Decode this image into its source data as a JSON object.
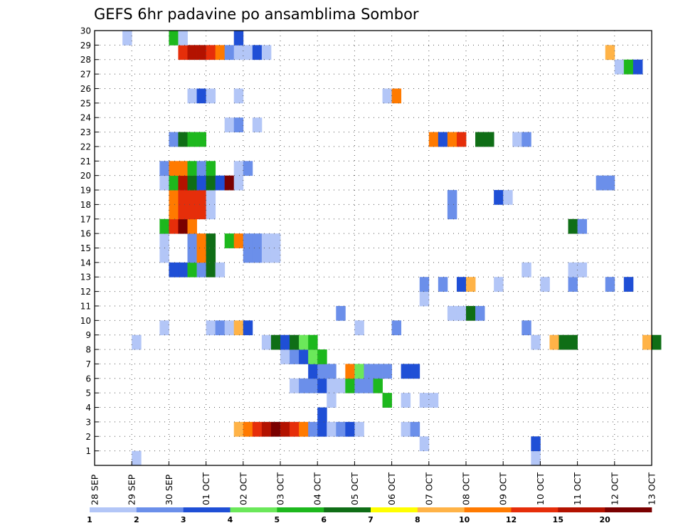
{
  "chart_data": {
    "type": "heatmap",
    "title": "GEFS 6hr padavine po ansamblima Sombor",
    "xlabel": "",
    "ylabel": "",
    "x_tick_labels": [
      "28 SEP",
      "29 SEP",
      "30 SEP",
      "01 OCT",
      "02 OCT",
      "03 OCT",
      "04 OCT",
      "05 OCT",
      "06 OCT",
      "07 OCT",
      "08 OCT",
      "09 OCT",
      "10 OCT",
      "11 OCT",
      "12 OCT",
      "13 OCT"
    ],
    "x_range_days": [
      0,
      15
    ],
    "time_step_hours": 6,
    "y_tick_labels": [
      "1",
      "2",
      "3",
      "4",
      "5",
      "6",
      "7",
      "8",
      "9",
      "10",
      "11",
      "12",
      "13",
      "14",
      "15",
      "16",
      "17",
      "18",
      "19",
      "20",
      "21",
      "22",
      "23",
      "24",
      "25",
      "26",
      "27",
      "28",
      "29",
      "30"
    ],
    "y_range": [
      0,
      30
    ],
    "grid": true,
    "legend": {
      "placement": "bottom",
      "levels": [
        "1",
        "2",
        "3",
        "4",
        "5",
        "6",
        "7",
        "8",
        "10",
        "12",
        "15",
        "20"
      ],
      "colors": [
        "#b3c6f7",
        "#6b8fea",
        "#1f4fd6",
        "#6be85a",
        "#1db81d",
        "#0f6e16",
        "#ffff00",
        "#ffb347",
        "#ff7a00",
        "#e62e0a",
        "#b31200",
        "#7a0000"
      ]
    },
    "cells": [
      {
        "m": 0,
        "t": 4,
        "c": 0
      },
      {
        "m": 0,
        "t": 47,
        "c": 0
      },
      {
        "m": 1,
        "t": 35,
        "c": 0
      },
      {
        "m": 1,
        "t": 47,
        "c": 2
      },
      {
        "m": 2,
        "t": 15,
        "c": 7
      },
      {
        "m": 2,
        "t": 16,
        "c": 8
      },
      {
        "m": 2,
        "t": 17,
        "c": 9
      },
      {
        "m": 2,
        "t": 18,
        "c": 10
      },
      {
        "m": 2,
        "t": 19,
        "c": 11
      },
      {
        "m": 2,
        "t": 20,
        "c": 10
      },
      {
        "m": 2,
        "t": 21,
        "c": 9
      },
      {
        "m": 2,
        "t": 22,
        "c": 8
      },
      {
        "m": 2,
        "t": 23,
        "c": 1
      },
      {
        "m": 2,
        "t": 24,
        "c": 2
      },
      {
        "m": 2,
        "t": 25,
        "c": 0
      },
      {
        "m": 2,
        "t": 26,
        "c": 1
      },
      {
        "m": 2,
        "t": 27,
        "c": 2
      },
      {
        "m": 2,
        "t": 28,
        "c": 0
      },
      {
        "m": 2,
        "t": 33,
        "c": 0
      },
      {
        "m": 2,
        "t": 34,
        "c": 1
      },
      {
        "m": 3,
        "t": 24,
        "c": 2
      },
      {
        "m": 4,
        "t": 25,
        "c": 0
      },
      {
        "m": 4,
        "t": 31,
        "c": 4
      },
      {
        "m": 4,
        "t": 33,
        "c": 0
      },
      {
        "m": 4,
        "t": 35,
        "c": 0
      },
      {
        "m": 4,
        "t": 36,
        "c": 0
      },
      {
        "m": 5,
        "t": 21,
        "c": 0
      },
      {
        "m": 5,
        "t": 22,
        "c": 1
      },
      {
        "m": 5,
        "t": 23,
        "c": 1
      },
      {
        "m": 5,
        "t": 24,
        "c": 2
      },
      {
        "m": 5,
        "t": 25,
        "c": 0
      },
      {
        "m": 5,
        "t": 26,
        "c": 0
      },
      {
        "m": 5,
        "t": 27,
        "c": 4
      },
      {
        "m": 5,
        "t": 28,
        "c": 1
      },
      {
        "m": 5,
        "t": 29,
        "c": 1
      },
      {
        "m": 5,
        "t": 30,
        "c": 4
      },
      {
        "m": 6,
        "t": 23,
        "c": 2
      },
      {
        "m": 6,
        "t": 24,
        "c": 1
      },
      {
        "m": 6,
        "t": 25,
        "c": 1
      },
      {
        "m": 6,
        "t": 27,
        "c": 8
      },
      {
        "m": 6,
        "t": 28,
        "c": 3
      },
      {
        "m": 6,
        "t": 29,
        "c": 1
      },
      {
        "m": 6,
        "t": 30,
        "c": 1
      },
      {
        "m": 6,
        "t": 31,
        "c": 1
      },
      {
        "m": 6,
        "t": 33,
        "c": 2
      },
      {
        "m": 6,
        "t": 34,
        "c": 2
      },
      {
        "m": 7,
        "t": 20,
        "c": 0
      },
      {
        "m": 7,
        "t": 21,
        "c": 1
      },
      {
        "m": 7,
        "t": 22,
        "c": 2
      },
      {
        "m": 7,
        "t": 23,
        "c": 3
      },
      {
        "m": 7,
        "t": 24,
        "c": 4
      },
      {
        "m": 8,
        "t": 4,
        "c": 0
      },
      {
        "m": 8,
        "t": 18,
        "c": 0
      },
      {
        "m": 8,
        "t": 19,
        "c": 5
      },
      {
        "m": 8,
        "t": 20,
        "c": 2
      },
      {
        "m": 8,
        "t": 21,
        "c": 5
      },
      {
        "m": 8,
        "t": 22,
        "c": 3
      },
      {
        "m": 8,
        "t": 23,
        "c": 4
      },
      {
        "m": 8,
        "t": 47,
        "c": 0
      },
      {
        "m": 8,
        "t": 49,
        "c": 7
      },
      {
        "m": 8,
        "t": 50,
        "c": 5
      },
      {
        "m": 8,
        "t": 51,
        "c": 5
      },
      {
        "m": 8,
        "t": 59,
        "c": 7
      },
      {
        "m": 8,
        "t": 60,
        "c": 5
      },
      {
        "m": 9,
        "t": 7,
        "c": 0
      },
      {
        "m": 9,
        "t": 12,
        "c": 0
      },
      {
        "m": 9,
        "t": 13,
        "c": 1
      },
      {
        "m": 9,
        "t": 14,
        "c": 0
      },
      {
        "m": 9,
        "t": 15,
        "c": 7
      },
      {
        "m": 9,
        "t": 16,
        "c": 2
      },
      {
        "m": 9,
        "t": 28,
        "c": 0
      },
      {
        "m": 9,
        "t": 32,
        "c": 1
      },
      {
        "m": 9,
        "t": 46,
        "c": 1
      },
      {
        "m": 10,
        "t": 26,
        "c": 1
      },
      {
        "m": 10,
        "t": 38,
        "c": 0
      },
      {
        "m": 10,
        "t": 39,
        "c": 0
      },
      {
        "m": 10,
        "t": 40,
        "c": 5
      },
      {
        "m": 10,
        "t": 41,
        "c": 1
      },
      {
        "m": 11,
        "t": 35,
        "c": 0
      },
      {
        "m": 12,
        "t": 35,
        "c": 1
      },
      {
        "m": 12,
        "t": 37,
        "c": 1
      },
      {
        "m": 12,
        "t": 39,
        "c": 2
      },
      {
        "m": 12,
        "t": 40,
        "c": 7
      },
      {
        "m": 12,
        "t": 43,
        "c": 0
      },
      {
        "m": 12,
        "t": 48,
        "c": 0
      },
      {
        "m": 12,
        "t": 51,
        "c": 1
      },
      {
        "m": 12,
        "t": 55,
        "c": 1
      },
      {
        "m": 12,
        "t": 57,
        "c": 2
      },
      {
        "m": 13,
        "t": 8,
        "c": 2
      },
      {
        "m": 13,
        "t": 9,
        "c": 2
      },
      {
        "m": 13,
        "t": 10,
        "c": 4
      },
      {
        "m": 13,
        "t": 11,
        "c": 1
      },
      {
        "m": 13,
        "t": 12,
        "c": 5
      },
      {
        "m": 13,
        "t": 13,
        "c": 0
      },
      {
        "m": 13,
        "t": 46,
        "c": 0
      },
      {
        "m": 13,
        "t": 51,
        "c": 0
      },
      {
        "m": 13,
        "t": 52,
        "c": 0
      },
      {
        "m": 14,
        "t": 7,
        "c": 0
      },
      {
        "m": 14,
        "t": 10,
        "c": 1
      },
      {
        "m": 14,
        "t": 11,
        "c": 8
      },
      {
        "m": 14,
        "t": 12,
        "c": 5
      },
      {
        "m": 14,
        "t": 16,
        "c": 1
      },
      {
        "m": 14,
        "t": 17,
        "c": 1
      },
      {
        "m": 14,
        "t": 18,
        "c": 0
      },
      {
        "m": 14,
        "t": 19,
        "c": 0
      },
      {
        "m": 15,
        "t": 7,
        "c": 0
      },
      {
        "m": 15,
        "t": 10,
        "c": 1
      },
      {
        "m": 15,
        "t": 11,
        "c": 8
      },
      {
        "m": 15,
        "t": 12,
        "c": 5
      },
      {
        "m": 15,
        "t": 14,
        "c": 4
      },
      {
        "m": 15,
        "t": 15,
        "c": 8
      },
      {
        "m": 15,
        "t": 16,
        "c": 1
      },
      {
        "m": 15,
        "t": 17,
        "c": 1
      },
      {
        "m": 15,
        "t": 18,
        "c": 0
      },
      {
        "m": 15,
        "t": 19,
        "c": 0
      },
      {
        "m": 16,
        "t": 7,
        "c": 4
      },
      {
        "m": 16,
        "t": 8,
        "c": 9
      },
      {
        "m": 16,
        "t": 9,
        "c": 11
      },
      {
        "m": 16,
        "t": 10,
        "c": 8
      },
      {
        "m": 16,
        "t": 51,
        "c": 5
      },
      {
        "m": 16,
        "t": 52,
        "c": 1
      },
      {
        "m": 17,
        "t": 8,
        "c": 8
      },
      {
        "m": 17,
        "t": 9,
        "c": 9
      },
      {
        "m": 17,
        "t": 10,
        "c": 9
      },
      {
        "m": 17,
        "t": 11,
        "c": 9
      },
      {
        "m": 17,
        "t": 12,
        "c": 0
      },
      {
        "m": 17,
        "t": 38,
        "c": 1
      },
      {
        "m": 18,
        "t": 8,
        "c": 8
      },
      {
        "m": 18,
        "t": 9,
        "c": 9
      },
      {
        "m": 18,
        "t": 10,
        "c": 9
      },
      {
        "m": 18,
        "t": 11,
        "c": 9
      },
      {
        "m": 18,
        "t": 12,
        "c": 0
      },
      {
        "m": 18,
        "t": 38,
        "c": 1
      },
      {
        "m": 18,
        "t": 43,
        "c": 2
      },
      {
        "m": 18,
        "t": 44,
        "c": 0
      },
      {
        "m": 19,
        "t": 7,
        "c": 0
      },
      {
        "m": 19,
        "t": 8,
        "c": 4
      },
      {
        "m": 19,
        "t": 9,
        "c": 10
      },
      {
        "m": 19,
        "t": 10,
        "c": 5
      },
      {
        "m": 19,
        "t": 11,
        "c": 2
      },
      {
        "m": 19,
        "t": 12,
        "c": 5
      },
      {
        "m": 19,
        "t": 13,
        "c": 2
      },
      {
        "m": 19,
        "t": 14,
        "c": 11
      },
      {
        "m": 19,
        "t": 15,
        "c": 0
      },
      {
        "m": 19,
        "t": 54,
        "c": 1
      },
      {
        "m": 19,
        "t": 55,
        "c": 1
      },
      {
        "m": 20,
        "t": 7,
        "c": 1
      },
      {
        "m": 20,
        "t": 8,
        "c": 8
      },
      {
        "m": 20,
        "t": 9,
        "c": 8
      },
      {
        "m": 20,
        "t": 10,
        "c": 4
      },
      {
        "m": 20,
        "t": 11,
        "c": 1
      },
      {
        "m": 20,
        "t": 12,
        "c": 4
      },
      {
        "m": 20,
        "t": 15,
        "c": 0
      },
      {
        "m": 20,
        "t": 16,
        "c": 1
      },
      {
        "m": 22,
        "t": 8,
        "c": 1
      },
      {
        "m": 22,
        "t": 9,
        "c": 5
      },
      {
        "m": 22,
        "t": 10,
        "c": 4
      },
      {
        "m": 22,
        "t": 11,
        "c": 4
      },
      {
        "m": 22,
        "t": 36,
        "c": 8
      },
      {
        "m": 22,
        "t": 37,
        "c": 2
      },
      {
        "m": 22,
        "t": 38,
        "c": 8
      },
      {
        "m": 22,
        "t": 39,
        "c": 9
      },
      {
        "m": 22,
        "t": 41,
        "c": 5
      },
      {
        "m": 22,
        "t": 42,
        "c": 5
      },
      {
        "m": 22,
        "t": 45,
        "c": 0
      },
      {
        "m": 22,
        "t": 46,
        "c": 1
      },
      {
        "m": 23,
        "t": 14,
        "c": 0
      },
      {
        "m": 23,
        "t": 15,
        "c": 1
      },
      {
        "m": 23,
        "t": 17,
        "c": 0
      },
      {
        "m": 25,
        "t": 10,
        "c": 0
      },
      {
        "m": 25,
        "t": 11,
        "c": 2
      },
      {
        "m": 25,
        "t": 12,
        "c": 0
      },
      {
        "m": 25,
        "t": 15,
        "c": 0
      },
      {
        "m": 25,
        "t": 31,
        "c": 0
      },
      {
        "m": 25,
        "t": 32,
        "c": 8
      },
      {
        "m": 27,
        "t": 56,
        "c": 0
      },
      {
        "m": 27,
        "t": 57,
        "c": 4
      },
      {
        "m": 27,
        "t": 58,
        "c": 2
      },
      {
        "m": 28,
        "t": 9,
        "c": 9
      },
      {
        "m": 28,
        "t": 10,
        "c": 10
      },
      {
        "m": 28,
        "t": 11,
        "c": 10
      },
      {
        "m": 28,
        "t": 12,
        "c": 9
      },
      {
        "m": 28,
        "t": 13,
        "c": 8
      },
      {
        "m": 28,
        "t": 14,
        "c": 1
      },
      {
        "m": 28,
        "t": 15,
        "c": 0
      },
      {
        "m": 28,
        "t": 16,
        "c": 0
      },
      {
        "m": 28,
        "t": 17,
        "c": 2
      },
      {
        "m": 28,
        "t": 18,
        "c": 0
      },
      {
        "m": 28,
        "t": 55,
        "c": 7
      },
      {
        "m": 29,
        "t": 3,
        "c": 0
      },
      {
        "m": 29,
        "t": 8,
        "c": 4
      },
      {
        "m": 29,
        "t": 9,
        "c": 0
      },
      {
        "m": 29,
        "t": 15,
        "c": 2
      }
    ]
  }
}
